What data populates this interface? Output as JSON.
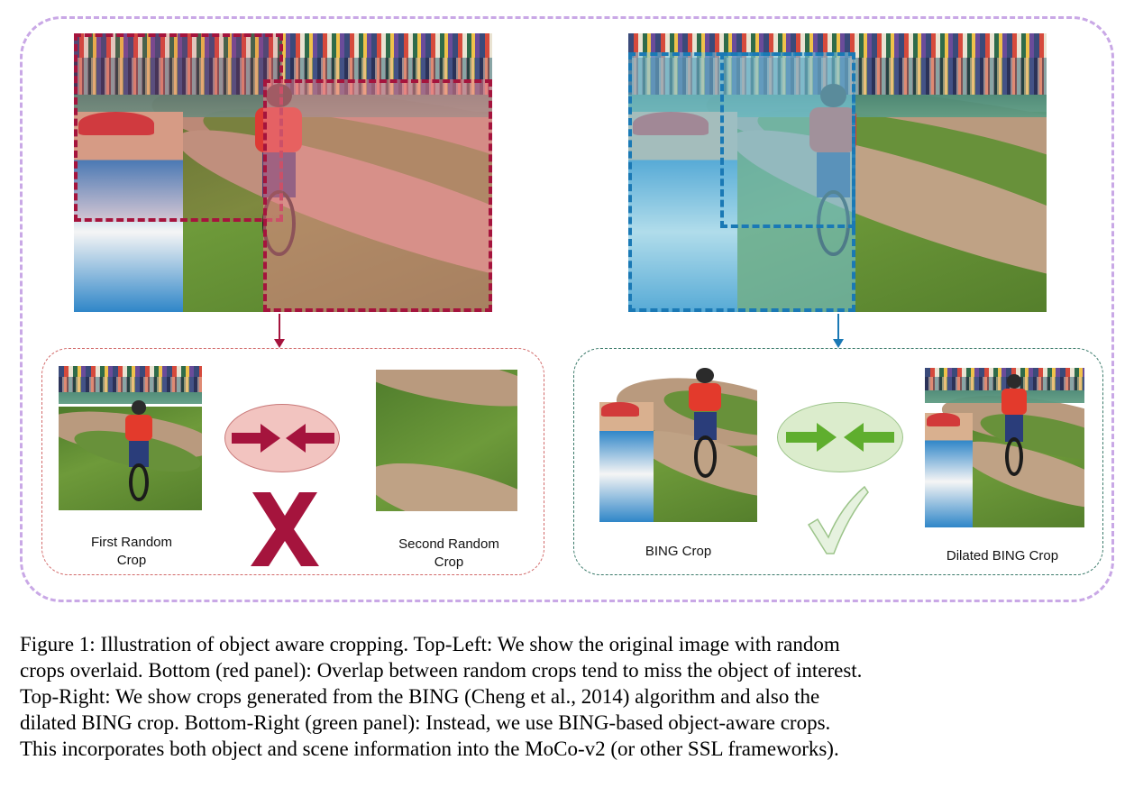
{
  "labels": {
    "first_random_crop": "First Random\nCrop",
    "second_random_crop": "Second Random\nCrop",
    "bing_crop": "BING Crop",
    "dilated_bing_crop": "Dilated BING Crop"
  },
  "colors": {
    "random_crop_accent": "#a5143d",
    "random_crop_fill": "#f2c4c0",
    "bing_crop_accent": "#1a79b5",
    "bing_crop_fill": "#9fd3e6",
    "good_accent": "#5fae2e",
    "good_fill": "#dbeccc",
    "outer_frame": "#c9a8e6",
    "red_panel_border": "#d26a6a",
    "green_panel_border": "#3a7a6a"
  },
  "icons": {
    "converging_arrows_red": "converging-arrows-icon",
    "cross_mark": "cross-mark-icon",
    "converging_arrows_green": "converging-arrows-icon",
    "check_mark": "check-mark-icon"
  },
  "caption": {
    "lines": [
      "Figure 1: Illustration of object aware cropping. Top-Left: We show the original image with random",
      "crops overlaid. Bottom (red panel): Overlap between random crops tend to miss the object of interest.",
      "Top-Right: We show crops generated from the BING (Cheng et al., 2014) algorithm and also the",
      "dilated BING crop. Bottom-Right (green panel): Instead, we use BING-based object-aware crops.",
      "This incorporates both object and scene information into the MoCo-v2 (or other SSL frameworks)."
    ]
  }
}
